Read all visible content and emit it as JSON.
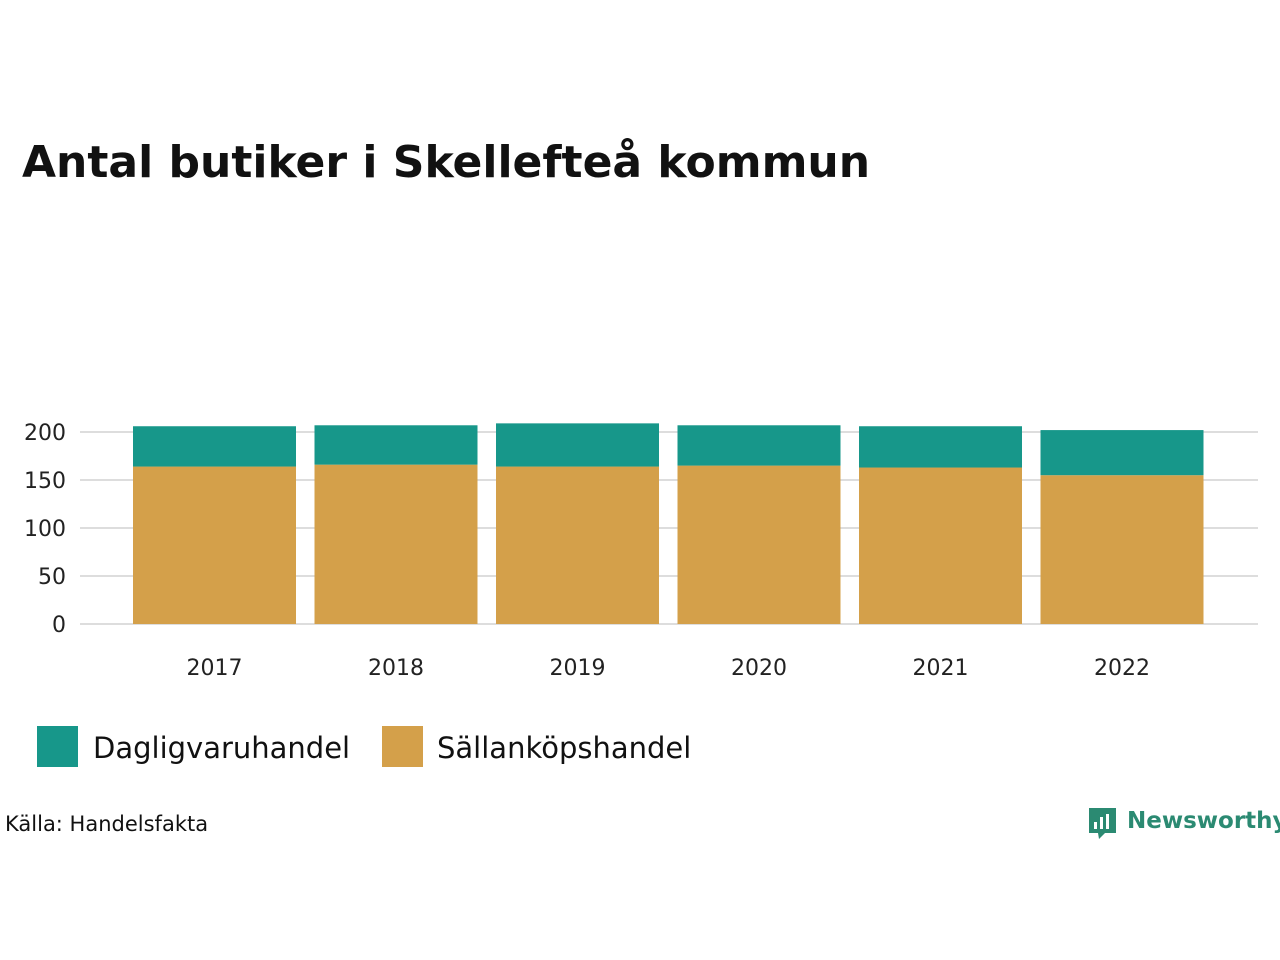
{
  "chart_data": {
    "type": "bar",
    "stacked": true,
    "title": "Antal butiker i Skellefteå kommun",
    "categories": [
      "2017",
      "2018",
      "2019",
      "2020",
      "2021",
      "2022"
    ],
    "series": [
      {
        "name": "Sällanköpshandel",
        "color": "#d4a04a",
        "values": [
          164,
          166,
          164,
          165,
          163,
          155
        ]
      },
      {
        "name": "Dagligvaruhandel",
        "color": "#17978a",
        "values": [
          42,
          41,
          45,
          42,
          43,
          47
        ]
      }
    ],
    "ylim": [
      0,
      210
    ],
    "yticks": [
      0,
      50,
      100,
      150,
      200
    ],
    "grid": true,
    "legend_position": "bottom-left"
  },
  "legend": [
    {
      "label": "Dagligvaruhandel",
      "color": "#17978a"
    },
    {
      "label": "Sällanköpshandel",
      "color": "#d4a04a"
    }
  ],
  "source": "Källa: Handelsfakta",
  "brand": {
    "name": "Newsworthy",
    "color": "#2b8a72",
    "icon": "bar-chart-logo-icon"
  }
}
